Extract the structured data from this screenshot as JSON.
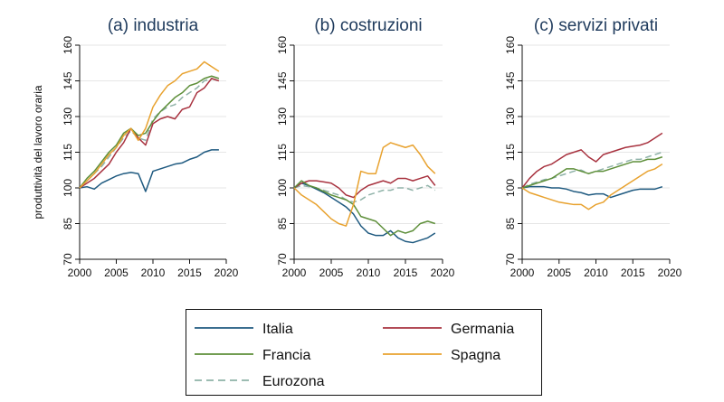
{
  "colors": {
    "Italia": "#1f5a80",
    "Germania": "#a8323f",
    "Francia": "#5e8f3a",
    "Spagna": "#e8a22f",
    "Eurozona": "#8fb2a8"
  },
  "chart_data": [
    {
      "type": "line",
      "title": "(a) industria",
      "ylabel": "produttività del lavoro oraria",
      "ylim": [
        70,
        160
      ],
      "yticks": [
        "70",
        "85",
        "100",
        "115",
        "130",
        "145",
        "160"
      ],
      "xlim": [
        2000,
        2020
      ],
      "xticks": [
        "2000",
        "2005",
        "2010",
        "2015",
        "2020"
      ],
      "x": [
        2000,
        2001,
        2002,
        2003,
        2004,
        2005,
        2006,
        2007,
        2008,
        2009,
        2010,
        2011,
        2012,
        2013,
        2014,
        2015,
        2016,
        2017,
        2018,
        2019
      ],
      "series": [
        {
          "name": "Italia",
          "values": [
            100,
            100.5,
            99.5,
            102,
            103.5,
            105,
            106,
            106.5,
            106,
            98.5,
            107,
            108,
            109,
            110,
            110.5,
            112,
            113,
            115,
            116,
            116
          ]
        },
        {
          "name": "Germania",
          "values": [
            100,
            102,
            104,
            107,
            110,
            115,
            119,
            125,
            121,
            118,
            127,
            129,
            130,
            129,
            133,
            134,
            140,
            142,
            146,
            145
          ]
        },
        {
          "name": "Francia",
          "values": [
            100,
            104,
            107,
            111,
            115,
            118,
            123,
            125,
            122,
            123,
            128,
            132,
            135,
            138,
            140,
            143,
            144,
            146,
            147,
            146
          ]
        },
        {
          "name": "Spagna",
          "values": [
            100,
            103,
            106,
            110,
            114,
            117,
            122,
            125,
            120,
            125,
            134,
            139,
            143,
            145,
            148,
            149,
            150,
            153,
            151,
            149
          ]
        },
        {
          "name": "Eurozona",
          "values": [
            100,
            103,
            106,
            109,
            113,
            117,
            121,
            124,
            121,
            120,
            129,
            132,
            134,
            135,
            138,
            140,
            142,
            145,
            146,
            145
          ],
          "dashed": true
        }
      ]
    },
    {
      "type": "line",
      "title": "(b) costruzioni",
      "ylim": [
        70,
        160
      ],
      "yticks": [
        "70",
        "85",
        "100",
        "115",
        "130",
        "145",
        "160"
      ],
      "xlim": [
        2000,
        2020
      ],
      "xticks": [
        "2000",
        "2005",
        "2010",
        "2015",
        "2020"
      ],
      "x": [
        2000,
        2001,
        2002,
        2003,
        2004,
        2005,
        2006,
        2007,
        2008,
        2009,
        2010,
        2011,
        2012,
        2013,
        2014,
        2015,
        2016,
        2017,
        2018,
        2019
      ],
      "series": [
        {
          "name": "Italia",
          "values": [
            100,
            102,
            101,
            99.5,
            98,
            96,
            94,
            92,
            89,
            84,
            81,
            80,
            80,
            82,
            79,
            77.5,
            77,
            78,
            79,
            81
          ]
        },
        {
          "name": "Germania",
          "values": [
            100,
            102,
            103,
            103,
            102.5,
            102,
            100,
            97,
            96,
            99,
            101,
            102,
            103,
            102,
            104,
            104,
            103,
            104,
            105,
            101
          ]
        },
        {
          "name": "Francia",
          "values": [
            100,
            103,
            101,
            100,
            98.5,
            97,
            96,
            95,
            93,
            88,
            87,
            86,
            83,
            80,
            82,
            81,
            82,
            85,
            86,
            85
          ]
        },
        {
          "name": "Spagna",
          "values": [
            100,
            97,
            95,
            93,
            90,
            87,
            85,
            84,
            93,
            107,
            106,
            106,
            117,
            119,
            118,
            117,
            118,
            114,
            109,
            106
          ]
        },
        {
          "name": "Eurozona",
          "values": [
            100,
            101,
            100.5,
            100,
            99,
            98,
            97,
            95,
            94,
            95,
            97,
            98,
            99,
            99,
            100,
            100,
            99,
            100,
            101,
            99
          ],
          "dashed": true
        }
      ]
    },
    {
      "type": "line",
      "title": "(c) servizi privati",
      "ylim": [
        70,
        160
      ],
      "yticks": [
        "70",
        "85",
        "100",
        "115",
        "130",
        "145",
        "160"
      ],
      "xlim": [
        2000,
        2020
      ],
      "xticks": [
        "2000",
        "2005",
        "2010",
        "2015",
        "2020"
      ],
      "x": [
        2000,
        2001,
        2002,
        2003,
        2004,
        2005,
        2006,
        2007,
        2008,
        2009,
        2010,
        2011,
        2012,
        2013,
        2014,
        2015,
        2016,
        2017,
        2018,
        2019
      ],
      "series": [
        {
          "name": "Italia",
          "values": [
            100,
            100.5,
            100.5,
            100.5,
            100,
            100,
            99.5,
            98.5,
            98,
            97,
            97.5,
            97.5,
            96,
            97,
            98,
            99,
            99.5,
            99.5,
            99.5,
            100.5
          ]
        },
        {
          "name": "Germania",
          "values": [
            100,
            104,
            107,
            109,
            110,
            112,
            114,
            115,
            116,
            113,
            111,
            114,
            115,
            116,
            117,
            117.5,
            118,
            119,
            121,
            123
          ]
        },
        {
          "name": "Francia",
          "values": [
            100,
            101,
            102,
            103,
            104,
            106,
            108,
            108,
            107,
            106,
            107,
            107,
            108,
            109,
            110,
            111,
            111,
            112,
            112,
            113
          ]
        },
        {
          "name": "Spagna",
          "values": [
            100,
            98,
            97,
            96,
            95,
            94,
            93.5,
            93,
            93,
            91,
            93,
            94,
            97,
            99,
            101,
            103,
            105,
            107,
            108,
            110
          ]
        },
        {
          "name": "Eurozona",
          "values": [
            100,
            101.5,
            102.5,
            103.5,
            104,
            105,
            106,
            107,
            107.5,
            106,
            107,
            108,
            109,
            110,
            111,
            112,
            112,
            113,
            114,
            115
          ],
          "dashed": true
        }
      ]
    }
  ],
  "legend": {
    "items": [
      {
        "name": "Italia",
        "label": "Italia"
      },
      {
        "name": "Germania",
        "label": "Germania"
      },
      {
        "name": "Francia",
        "label": "Francia"
      },
      {
        "name": "Spagna",
        "label": "Spagna"
      },
      {
        "name": "Eurozona",
        "label": "Eurozona",
        "dashed": true
      }
    ]
  }
}
